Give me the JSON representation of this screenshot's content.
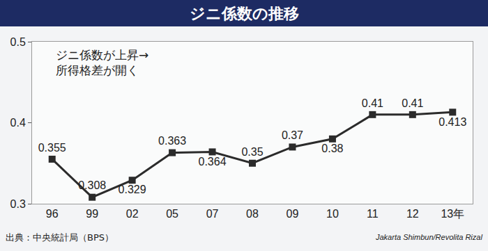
{
  "chart_data": {
    "type": "line",
    "title": "ジニ係数の推移",
    "annotation": [
      "ジニ係数が上昇→",
      "所得格差が開く"
    ],
    "source": "出典：中央統計局（BPS）",
    "credit": "Jakarta Shimbun/Revolita Rizal",
    "categories": [
      "96",
      "99",
      "02",
      "05",
      "07",
      "08",
      "09",
      "10",
      "11",
      "12",
      "13年"
    ],
    "values": [
      0.355,
      0.308,
      0.329,
      0.363,
      0.364,
      0.35,
      0.37,
      0.38,
      0.41,
      0.41,
      0.413
    ],
    "color": "#2b2b2b",
    "marker": "square",
    "ylim": [
      0.3,
      0.5
    ],
    "yticks": [
      0.3,
      0.4,
      0.5
    ],
    "grid": false,
    "data_labels": true
  }
}
